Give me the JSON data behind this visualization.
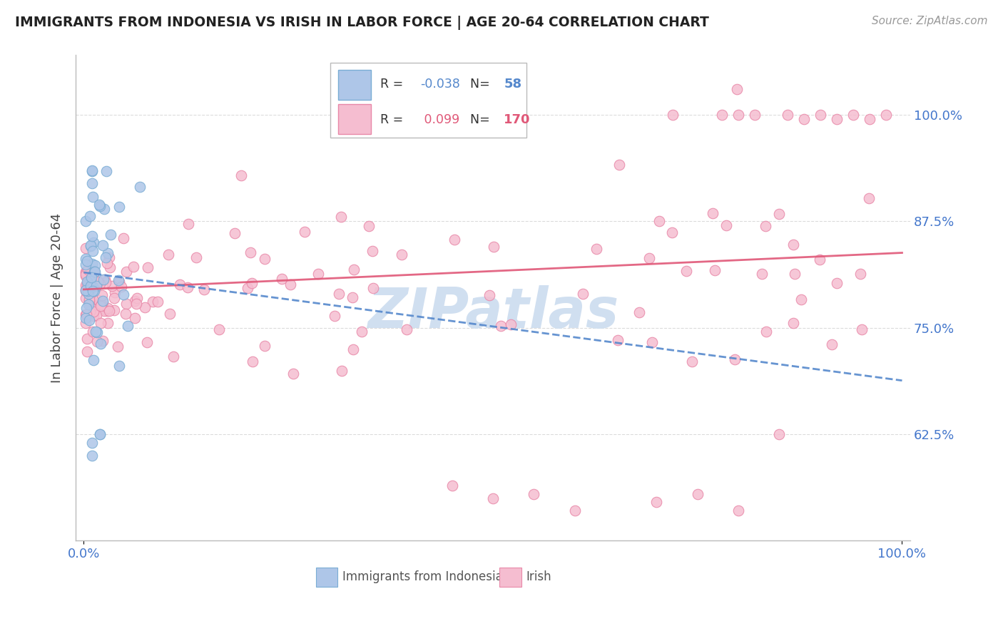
{
  "title": "IMMIGRANTS FROM INDONESIA VS IRISH IN LABOR FORCE | AGE 20-64 CORRELATION CHART",
  "source": "Source: ZipAtlas.com",
  "ylabel": "In Labor Force | Age 20-64",
  "x_tick_labels": [
    "0.0%",
    "100.0%"
  ],
  "y_tick_labels": [
    "62.5%",
    "75.0%",
    "87.5%",
    "100.0%"
  ],
  "y_tick_values": [
    0.625,
    0.75,
    0.875,
    1.0
  ],
  "x_lim": [
    -0.01,
    1.01
  ],
  "y_lim": [
    0.5,
    1.07
  ],
  "legend_labels": [
    "Immigrants from Indonesia",
    "Irish"
  ],
  "blue_R": -0.038,
  "blue_N": 58,
  "pink_R": 0.099,
  "pink_N": 170,
  "blue_color": "#aec6e8",
  "pink_color": "#f5bdd0",
  "blue_edge_color": "#7aadd4",
  "pink_edge_color": "#e888a8",
  "blue_line_color": "#5588cc",
  "pink_line_color": "#e05878",
  "background_color": "#ffffff",
  "title_color": "#222222",
  "axis_label_color": "#444444",
  "tick_label_color": "#4477cc",
  "grid_color": "#cccccc",
  "watermark_color": "#d0dff0",
  "figsize": [
    14.06,
    8.92
  ],
  "dpi": 100,
  "blue_trend_x0": 0.0,
  "blue_trend_y0": 0.815,
  "blue_trend_x1": 1.0,
  "blue_trend_y1": 0.688,
  "pink_trend_x0": 0.0,
  "pink_trend_y0": 0.795,
  "pink_trend_x1": 1.0,
  "pink_trend_y1": 0.838
}
